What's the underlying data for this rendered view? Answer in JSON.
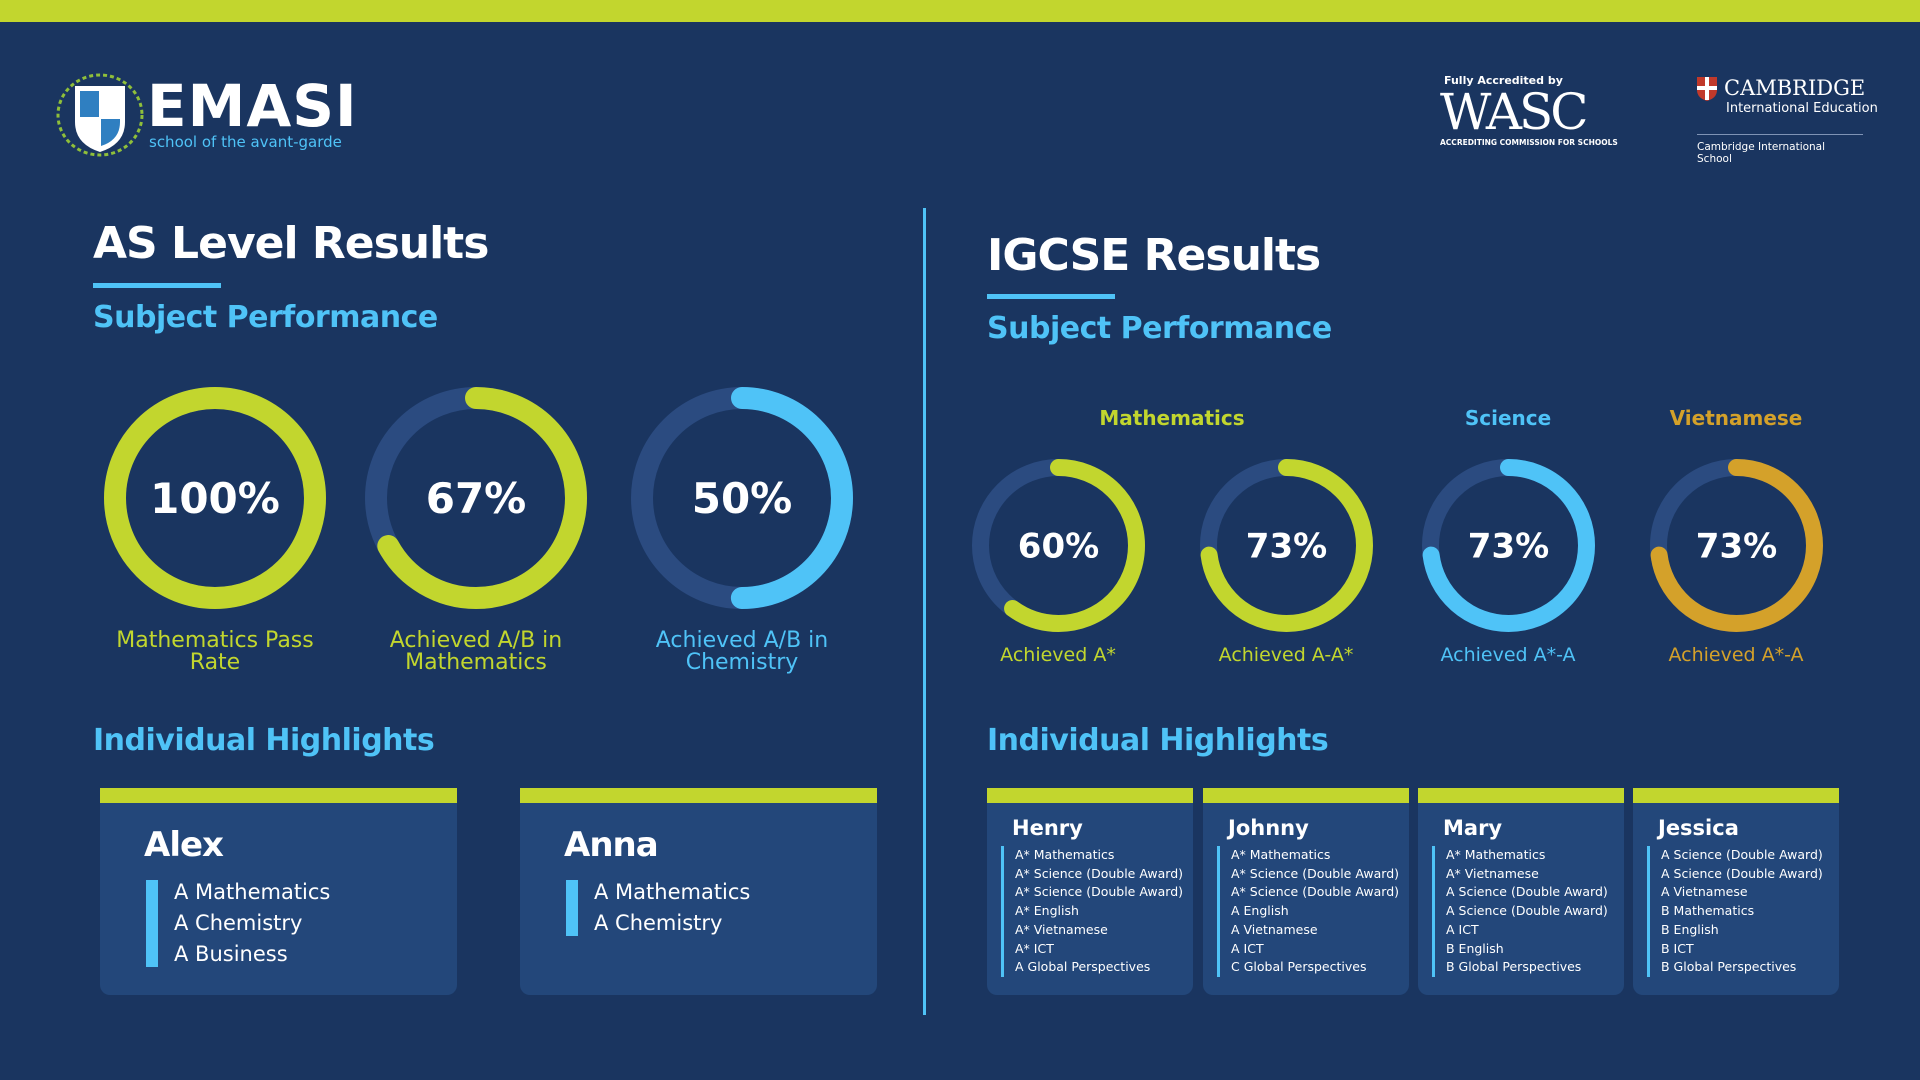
{
  "header": {
    "logo_name": "EMASI",
    "logo_tagline": "school of the avant-garde",
    "wasc_top": "Fully Accredited by",
    "wasc_name": "WASC",
    "wasc_sub": "ACCREDITING COMMISSION FOR SCHOOLS",
    "cambridge_name": "CAMBRIDGE",
    "cambridge_sub": "International Education",
    "cambridge_school": "Cambridge International School"
  },
  "as_level": {
    "title": "AS Level Results",
    "subtitle": "Subject Performance",
    "donuts": [
      {
        "value": 100,
        "value_label": "100%",
        "label": "Mathematics Pass Rate",
        "color": "#c2d62e"
      },
      {
        "value": 67,
        "value_label": "67%",
        "label": "Achieved A/B in Mathematics",
        "color": "#c2d62e"
      },
      {
        "value": 50,
        "value_label": "50%",
        "label": "Achieved A/B in Chemistry",
        "color": "#4fc3f7"
      }
    ],
    "highlights_title": "Individual Highlights",
    "students": [
      {
        "name": "Alex",
        "results": [
          "A Mathematics",
          "A Chemistry",
          "A Business"
        ]
      },
      {
        "name": "Anna",
        "results": [
          "A Mathematics",
          "A Chemistry"
        ]
      }
    ]
  },
  "igcse": {
    "title": "IGCSE Results",
    "subtitle": "Subject Performance",
    "groups": [
      {
        "subject": "Mathematics",
        "color": "#c2d62e",
        "donuts": [
          {
            "value": 60,
            "value_label": "60%",
            "label": "Achieved A*"
          },
          {
            "value": 73,
            "value_label": "73%",
            "label": "Achieved A-A*"
          }
        ]
      },
      {
        "subject": "Science",
        "color": "#4fc3f7",
        "donuts": [
          {
            "value": 73,
            "value_label": "73%",
            "label": "Achieved A*-A"
          }
        ]
      },
      {
        "subject": "Vietnamese",
        "color": "#d4a12a",
        "donuts": [
          {
            "value": 73,
            "value_label": "73%",
            "label": "Achieved A*-A"
          }
        ]
      }
    ],
    "highlights_title": "Individual Highlights",
    "students": [
      {
        "name": "Henry",
        "results": [
          "A* Mathematics",
          "A* Science (Double Award)",
          "A* Science (Double Award)",
          "A* English",
          "A* Vietnamese",
          "A* ICT",
          "A Global Perspectives"
        ]
      },
      {
        "name": "Johnny",
        "results": [
          "A* Mathematics",
          "A* Science (Double Award)",
          "A* Science (Double Award)",
          "A English",
          "A Vietnamese",
          "A ICT",
          "C Global Perspectives"
        ]
      },
      {
        "name": "Mary",
        "results": [
          "A* Mathematics",
          "A* Vietnamese",
          "A Science (Double Award)",
          "A Science (Double Award)",
          "A ICT",
          "B English",
          "B Global Perspectives"
        ]
      },
      {
        "name": "Jessica",
        "results": [
          "A Science (Double Award)",
          "A Science (Double Award)",
          "A Vietnamese",
          "B Mathematics",
          "B English",
          "B ICT",
          "B Global Perspectives"
        ]
      }
    ]
  }
}
